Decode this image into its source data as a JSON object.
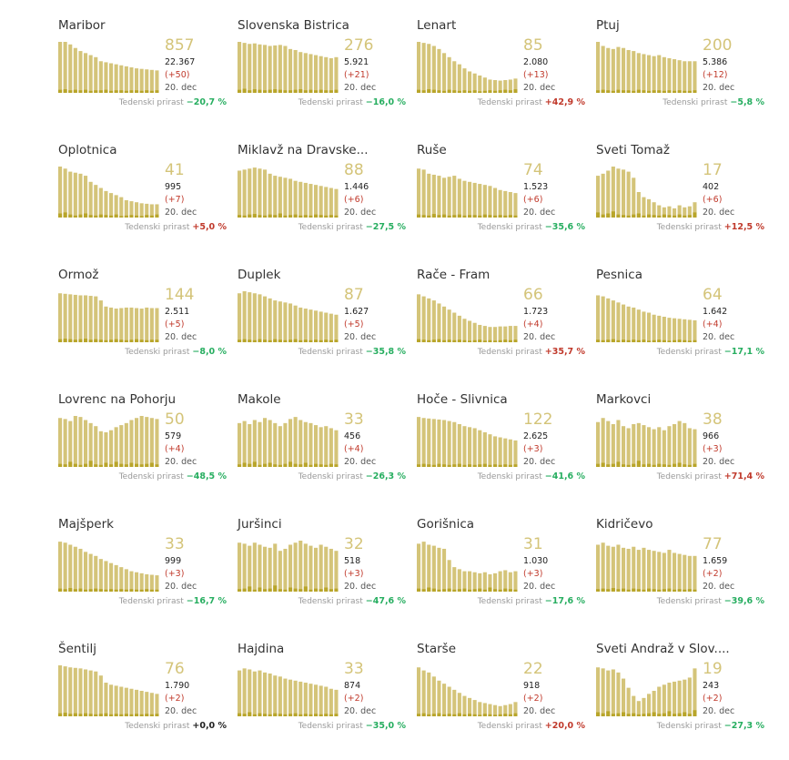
{
  "growth_label": "Tedenski prirast",
  "colors": {
    "bar": "#d4c479",
    "bar_light": "#e4d9a3",
    "bar_dark": "#b8a52a",
    "positive": "#c0392b",
    "negative": "#27ae60",
    "neutral": "#222222"
  },
  "chart_data": [
    {
      "type": "bar",
      "title": "Maribor",
      "big": "857",
      "cases": "22.367",
      "delta": "(+50)",
      "date": "20. dec",
      "growth": "−20,7 %",
      "sign": "neg",
      "values": [
        1.0,
        1.0,
        0.95,
        0.88,
        0.82,
        0.78,
        0.74,
        0.7,
        0.62,
        0.6,
        0.58,
        0.56,
        0.54,
        0.52,
        0.5,
        0.48,
        0.47,
        0.46,
        0.45,
        0.44
      ],
      "daily": [
        0.06,
        0.07,
        0.05,
        0.06,
        0.05,
        0.06,
        0.04,
        0.05,
        0.05,
        0.06,
        0.04,
        0.05,
        0.05,
        0.04,
        0.05,
        0.05,
        0.04,
        0.05,
        0.04,
        0.05
      ]
    },
    {
      "type": "bar",
      "title": "Slovenska Bistrica",
      "big": "276",
      "cases": "5.921",
      "delta": "(+21)",
      "date": "20. dec",
      "growth": "−16,0 %",
      "sign": "neg",
      "values": [
        1.0,
        0.98,
        0.96,
        0.97,
        0.95,
        0.94,
        0.92,
        0.93,
        0.94,
        0.92,
        0.86,
        0.84,
        0.8,
        0.78,
        0.76,
        0.74,
        0.72,
        0.7,
        0.68,
        0.7
      ],
      "daily": [
        0.06,
        0.08,
        0.05,
        0.07,
        0.06,
        0.05,
        0.06,
        0.07,
        0.06,
        0.05,
        0.05,
        0.06,
        0.07,
        0.05,
        0.06,
        0.05,
        0.06,
        0.05,
        0.05,
        0.06
      ]
    },
    {
      "type": "bar",
      "title": "Lenart",
      "big": "85",
      "cases": "2.080",
      "delta": "(+13)",
      "date": "20. dec",
      "growth": "+42,9 %",
      "sign": "pos",
      "values": [
        1.0,
        0.98,
        0.96,
        0.92,
        0.86,
        0.78,
        0.7,
        0.62,
        0.56,
        0.48,
        0.42,
        0.38,
        0.34,
        0.3,
        0.26,
        0.25,
        0.24,
        0.25,
        0.26,
        0.28
      ],
      "daily": [
        0.06,
        0.05,
        0.07,
        0.06,
        0.05,
        0.04,
        0.06,
        0.05,
        0.04,
        0.05,
        0.04,
        0.05,
        0.03,
        0.04,
        0.05,
        0.04,
        0.05,
        0.06,
        0.05,
        0.07
      ]
    },
    {
      "type": "bar",
      "title": "Ptuj",
      "big": "200",
      "cases": "5.386",
      "delta": "(+12)",
      "date": "20. dec",
      "growth": "−5,8 %",
      "sign": "neg",
      "values": [
        1.0,
        0.92,
        0.88,
        0.86,
        0.9,
        0.88,
        0.84,
        0.82,
        0.78,
        0.76,
        0.74,
        0.72,
        0.74,
        0.7,
        0.68,
        0.66,
        0.64,
        0.62,
        0.62,
        0.62
      ],
      "daily": [
        0.05,
        0.06,
        0.05,
        0.04,
        0.06,
        0.05,
        0.05,
        0.04,
        0.06,
        0.05,
        0.04,
        0.05,
        0.05,
        0.04,
        0.05,
        0.04,
        0.05,
        0.04,
        0.04,
        0.05
      ]
    },
    {
      "type": "bar",
      "title": "Oplotnica",
      "big": "41",
      "cases": "995",
      "delta": "(+7)",
      "date": "20. dec",
      "growth": "+5,0 %",
      "sign": "pos",
      "values": [
        1.0,
        0.96,
        0.9,
        0.88,
        0.86,
        0.82,
        0.7,
        0.64,
        0.58,
        0.52,
        0.48,
        0.44,
        0.4,
        0.34,
        0.32,
        0.3,
        0.28,
        0.27,
        0.26,
        0.26
      ],
      "daily": [
        0.08,
        0.1,
        0.06,
        0.04,
        0.06,
        0.08,
        0.05,
        0.04,
        0.06,
        0.05,
        0.04,
        0.06,
        0.03,
        0.04,
        0.05,
        0.04,
        0.03,
        0.05,
        0.04,
        0.06
      ]
    },
    {
      "type": "bar",
      "title": "Miklavž na Dravske...",
      "big": "88",
      "cases": "1.446",
      "delta": "(+6)",
      "date": "20. dec",
      "growth": "−27,5 %",
      "sign": "neg",
      "values": [
        0.92,
        0.94,
        0.96,
        0.98,
        0.96,
        0.94,
        0.86,
        0.82,
        0.8,
        0.78,
        0.76,
        0.72,
        0.7,
        0.68,
        0.66,
        0.64,
        0.62,
        0.6,
        0.58,
        0.56
      ],
      "daily": [
        0.05,
        0.04,
        0.06,
        0.07,
        0.05,
        0.04,
        0.06,
        0.05,
        0.08,
        0.04,
        0.05,
        0.06,
        0.04,
        0.05,
        0.04,
        0.06,
        0.05,
        0.04,
        0.05,
        0.04
      ]
    },
    {
      "type": "bar",
      "title": "Ruše",
      "big": "74",
      "cases": "1.523",
      "delta": "(+6)",
      "date": "20. dec",
      "growth": "−35,6 %",
      "sign": "neg",
      "values": [
        0.96,
        0.94,
        0.86,
        0.84,
        0.82,
        0.78,
        0.8,
        0.82,
        0.76,
        0.72,
        0.7,
        0.68,
        0.66,
        0.64,
        0.62,
        0.58,
        0.54,
        0.52,
        0.5,
        0.48
      ],
      "daily": [
        0.06,
        0.05,
        0.04,
        0.07,
        0.05,
        0.06,
        0.04,
        0.05,
        0.06,
        0.04,
        0.05,
        0.05,
        0.04,
        0.06,
        0.05,
        0.04,
        0.05,
        0.04,
        0.05,
        0.04
      ]
    },
    {
      "type": "bar",
      "title": "Sveti Tomaž",
      "big": "17",
      "cases": "402",
      "delta": "(+6)",
      "date": "20. dec",
      "growth": "+12,5 %",
      "sign": "pos",
      "values": [
        0.82,
        0.86,
        0.92,
        1.0,
        0.96,
        0.94,
        0.9,
        0.78,
        0.5,
        0.4,
        0.36,
        0.3,
        0.24,
        0.2,
        0.22,
        0.18,
        0.24,
        0.2,
        0.22,
        0.3
      ],
      "daily": [
        0.1,
        0.06,
        0.08,
        0.12,
        0.06,
        0.05,
        0.04,
        0.06,
        0.08,
        0.04,
        0.06,
        0.05,
        0.04,
        0.06,
        0.05,
        0.04,
        0.06,
        0.04,
        0.05,
        0.1
      ]
    },
    {
      "type": "bar",
      "title": "Ormož",
      "big": "144",
      "cases": "2.511",
      "delta": "(+5)",
      "date": "20. dec",
      "growth": "−8,0 %",
      "sign": "neg",
      "values": [
        0.96,
        0.95,
        0.94,
        0.93,
        0.92,
        0.92,
        0.91,
        0.9,
        0.82,
        0.7,
        0.68,
        0.66,
        0.67,
        0.68,
        0.68,
        0.67,
        0.66,
        0.68,
        0.67,
        0.67
      ],
      "daily": [
        0.06,
        0.07,
        0.06,
        0.05,
        0.06,
        0.07,
        0.05,
        0.06,
        0.05,
        0.04,
        0.05,
        0.06,
        0.05,
        0.04,
        0.05,
        0.06,
        0.05,
        0.04,
        0.05,
        0.05
      ]
    },
    {
      "type": "bar",
      "title": "Duplek",
      "big": "87",
      "cases": "1.627",
      "delta": "(+5)",
      "date": "20. dec",
      "growth": "−35,8 %",
      "sign": "neg",
      "values": [
        0.96,
        1.0,
        0.98,
        0.96,
        0.94,
        0.9,
        0.86,
        0.82,
        0.8,
        0.78,
        0.76,
        0.72,
        0.68,
        0.66,
        0.64,
        0.62,
        0.6,
        0.58,
        0.56,
        0.54
      ],
      "daily": [
        0.05,
        0.06,
        0.05,
        0.04,
        0.06,
        0.05,
        0.04,
        0.06,
        0.05,
        0.04,
        0.05,
        0.06,
        0.04,
        0.05,
        0.04,
        0.05,
        0.04,
        0.05,
        0.04,
        0.05
      ]
    },
    {
      "type": "bar",
      "title": "Rače - Fram",
      "big": "66",
      "cases": "1.723",
      "delta": "(+4)",
      "date": "20. dec",
      "growth": "+35,7 %",
      "sign": "pos",
      "values": [
        0.94,
        0.9,
        0.86,
        0.82,
        0.76,
        0.7,
        0.64,
        0.58,
        0.52,
        0.46,
        0.42,
        0.38,
        0.34,
        0.32,
        0.3,
        0.3,
        0.31,
        0.31,
        0.32,
        0.32
      ],
      "daily": [
        0.06,
        0.05,
        0.04,
        0.05,
        0.06,
        0.04,
        0.05,
        0.04,
        0.05,
        0.04,
        0.03,
        0.04,
        0.05,
        0.03,
        0.04,
        0.03,
        0.04,
        0.05,
        0.04,
        0.05
      ]
    },
    {
      "type": "bar",
      "title": "Pesnica",
      "big": "64",
      "cases": "1.642",
      "delta": "(+4)",
      "date": "20. dec",
      "growth": "−17,1 %",
      "sign": "neg",
      "values": [
        0.92,
        0.9,
        0.86,
        0.82,
        0.78,
        0.74,
        0.7,
        0.68,
        0.64,
        0.6,
        0.58,
        0.54,
        0.52,
        0.5,
        0.48,
        0.47,
        0.46,
        0.45,
        0.44,
        0.43
      ],
      "daily": [
        0.05,
        0.04,
        0.05,
        0.06,
        0.04,
        0.05,
        0.04,
        0.05,
        0.04,
        0.05,
        0.03,
        0.04,
        0.05,
        0.04,
        0.03,
        0.04,
        0.05,
        0.04,
        0.03,
        0.04
      ]
    },
    {
      "type": "bar",
      "title": "Lovrenc na Pohorju",
      "big": "50",
      "cases": "579",
      "delta": "(+4)",
      "date": "20. dec",
      "growth": "−48,5 %",
      "sign": "neg",
      "values": [
        0.96,
        0.94,
        0.9,
        1.0,
        0.98,
        0.92,
        0.86,
        0.8,
        0.7,
        0.68,
        0.72,
        0.78,
        0.82,
        0.86,
        0.92,
        0.96,
        1.0,
        0.98,
        0.96,
        0.94
      ],
      "daily": [
        0.06,
        0.05,
        0.1,
        0.06,
        0.04,
        0.06,
        0.12,
        0.05,
        0.04,
        0.08,
        0.05,
        0.1,
        0.06,
        0.05,
        0.08,
        0.06,
        0.05,
        0.06,
        0.08,
        0.05
      ]
    },
    {
      "type": "bar",
      "title": "Makole",
      "big": "33",
      "cases": "456",
      "delta": "(+4)",
      "date": "20. dec",
      "growth": "−26,3 %",
      "sign": "neg",
      "values": [
        0.86,
        0.9,
        0.84,
        0.92,
        0.88,
        0.96,
        0.92,
        0.86,
        0.8,
        0.86,
        0.94,
        0.98,
        0.92,
        0.88,
        0.86,
        0.82,
        0.78,
        0.8,
        0.76,
        0.72
      ],
      "daily": [
        0.05,
        0.08,
        0.06,
        0.1,
        0.04,
        0.06,
        0.08,
        0.05,
        0.04,
        0.06,
        0.1,
        0.06,
        0.05,
        0.08,
        0.04,
        0.06,
        0.05,
        0.04,
        0.06,
        0.05
      ]
    },
    {
      "type": "bar",
      "title": "Hoče - Slivnica",
      "big": "122",
      "cases": "2.625",
      "delta": "(+3)",
      "date": "20. dec",
      "growth": "−41,6 %",
      "sign": "neg",
      "values": [
        0.98,
        0.96,
        0.95,
        0.94,
        0.93,
        0.92,
        0.9,
        0.88,
        0.84,
        0.8,
        0.78,
        0.76,
        0.72,
        0.68,
        0.64,
        0.6,
        0.58,
        0.56,
        0.54,
        0.52
      ],
      "daily": [
        0.05,
        0.06,
        0.05,
        0.04,
        0.06,
        0.05,
        0.04,
        0.05,
        0.06,
        0.04,
        0.05,
        0.04,
        0.05,
        0.06,
        0.04,
        0.05,
        0.04,
        0.05,
        0.04,
        0.05
      ]
    },
    {
      "type": "bar",
      "title": "Markovci",
      "big": "38",
      "cases": "966",
      "delta": "(+3)",
      "date": "20. dec",
      "growth": "+71,4 %",
      "sign": "pos",
      "values": [
        0.88,
        0.96,
        0.9,
        0.84,
        0.92,
        0.8,
        0.76,
        0.84,
        0.86,
        0.82,
        0.78,
        0.74,
        0.78,
        0.72,
        0.8,
        0.84,
        0.9,
        0.86,
        0.76,
        0.74
      ],
      "daily": [
        0.06,
        0.08,
        0.05,
        0.06,
        0.1,
        0.05,
        0.04,
        0.06,
        0.12,
        0.05,
        0.06,
        0.04,
        0.06,
        0.05,
        0.04,
        0.06,
        0.08,
        0.05,
        0.04,
        0.06
      ]
    },
    {
      "type": "bar",
      "title": "Majšperk",
      "big": "33",
      "cases": "999",
      "delta": "(+3)",
      "date": "20. dec",
      "growth": "−16,7 %",
      "sign": "neg",
      "values": [
        0.98,
        0.96,
        0.92,
        0.88,
        0.84,
        0.78,
        0.74,
        0.7,
        0.64,
        0.6,
        0.56,
        0.52,
        0.48,
        0.44,
        0.4,
        0.38,
        0.36,
        0.34,
        0.33,
        0.32
      ],
      "daily": [
        0.06,
        0.05,
        0.07,
        0.05,
        0.06,
        0.04,
        0.05,
        0.06,
        0.05,
        0.04,
        0.05,
        0.04,
        0.05,
        0.04,
        0.05,
        0.04,
        0.04,
        0.05,
        0.04,
        0.04
      ]
    },
    {
      "type": "bar",
      "title": "Juršinci",
      "big": "32",
      "cases": "518",
      "delta": "(+3)",
      "date": "20. dec",
      "growth": "−47,6 %",
      "sign": "neg",
      "values": [
        0.96,
        0.94,
        0.9,
        0.96,
        0.92,
        0.88,
        0.86,
        0.94,
        0.8,
        0.84,
        0.92,
        0.96,
        1.0,
        0.94,
        0.9,
        0.86,
        0.92,
        0.88,
        0.84,
        0.8
      ],
      "daily": [
        0.05,
        0.06,
        0.1,
        0.04,
        0.08,
        0.05,
        0.06,
        0.12,
        0.05,
        0.04,
        0.08,
        0.06,
        0.05,
        0.1,
        0.04,
        0.06,
        0.05,
        0.08,
        0.05,
        0.06
      ]
    },
    {
      "type": "bar",
      "title": "Gorišnica",
      "big": "31",
      "cases": "1.030",
      "delta": "(+3)",
      "date": "20. dec",
      "growth": "−17,6 %",
      "sign": "neg",
      "values": [
        0.94,
        0.98,
        0.92,
        0.9,
        0.86,
        0.84,
        0.62,
        0.48,
        0.44,
        0.4,
        0.4,
        0.38,
        0.36,
        0.38,
        0.34,
        0.36,
        0.4,
        0.42,
        0.38,
        0.4
      ],
      "daily": [
        0.06,
        0.05,
        0.08,
        0.06,
        0.04,
        0.05,
        0.06,
        0.04,
        0.05,
        0.06,
        0.04,
        0.05,
        0.06,
        0.04,
        0.08,
        0.05,
        0.04,
        0.06,
        0.05,
        0.04
      ]
    },
    {
      "type": "bar",
      "title": "Kidričevo",
      "big": "77",
      "cases": "1.659",
      "delta": "(+2)",
      "date": "20. dec",
      "growth": "−39,6 %",
      "sign": "neg",
      "values": [
        0.92,
        0.96,
        0.9,
        0.88,
        0.92,
        0.86,
        0.84,
        0.88,
        0.82,
        0.86,
        0.82,
        0.8,
        0.78,
        0.76,
        0.82,
        0.76,
        0.74,
        0.72,
        0.7,
        0.7
      ],
      "daily": [
        0.05,
        0.06,
        0.05,
        0.07,
        0.05,
        0.06,
        0.04,
        0.06,
        0.05,
        0.04,
        0.06,
        0.05,
        0.04,
        0.05,
        0.06,
        0.04,
        0.05,
        0.04,
        0.05,
        0.04
      ]
    },
    {
      "type": "bar",
      "title": "Šentilj",
      "big": "76",
      "cases": "1.790",
      "delta": "(+2)",
      "date": "20. dec",
      "growth": "+0,0 %",
      "sign": "zero",
      "values": [
        1.0,
        0.98,
        0.96,
        0.95,
        0.94,
        0.92,
        0.9,
        0.88,
        0.8,
        0.66,
        0.62,
        0.6,
        0.58,
        0.56,
        0.54,
        0.52,
        0.5,
        0.48,
        0.46,
        0.44
      ],
      "daily": [
        0.06,
        0.07,
        0.05,
        0.06,
        0.05,
        0.06,
        0.05,
        0.04,
        0.05,
        0.06,
        0.04,
        0.05,
        0.04,
        0.05,
        0.04,
        0.05,
        0.04,
        0.05,
        0.04,
        0.05
      ]
    },
    {
      "type": "bar",
      "title": "Hajdina",
      "big": "33",
      "cases": "874",
      "delta": "(+2)",
      "date": "20. dec",
      "growth": "−35,0 %",
      "sign": "neg",
      "values": [
        0.9,
        0.94,
        0.92,
        0.88,
        0.9,
        0.86,
        0.84,
        0.8,
        0.78,
        0.74,
        0.72,
        0.7,
        0.68,
        0.66,
        0.64,
        0.62,
        0.6,
        0.58,
        0.54,
        0.52
      ],
      "daily": [
        0.06,
        0.05,
        0.08,
        0.04,
        0.06,
        0.05,
        0.04,
        0.06,
        0.05,
        0.04,
        0.05,
        0.06,
        0.04,
        0.05,
        0.04,
        0.05,
        0.04,
        0.05,
        0.04,
        0.05
      ]
    },
    {
      "type": "bar",
      "title": "Starše",
      "big": "22",
      "cases": "918",
      "delta": "(+2)",
      "date": "20. dec",
      "growth": "+20,0 %",
      "sign": "pos",
      "values": [
        0.96,
        0.9,
        0.86,
        0.78,
        0.7,
        0.64,
        0.58,
        0.52,
        0.46,
        0.4,
        0.36,
        0.32,
        0.28,
        0.26,
        0.24,
        0.22,
        0.2,
        0.22,
        0.24,
        0.28
      ],
      "daily": [
        0.05,
        0.06,
        0.04,
        0.05,
        0.06,
        0.04,
        0.05,
        0.04,
        0.06,
        0.04,
        0.05,
        0.04,
        0.03,
        0.05,
        0.04,
        0.03,
        0.04,
        0.05,
        0.04,
        0.06
      ]
    },
    {
      "type": "bar",
      "title": "Sveti Andraž v Slov....",
      "big": "19",
      "cases": "243",
      "delta": "(+2)",
      "date": "20. dec",
      "growth": "−27,3 %",
      "sign": "neg",
      "values": [
        0.96,
        0.94,
        0.9,
        0.92,
        0.86,
        0.74,
        0.56,
        0.4,
        0.3,
        0.36,
        0.44,
        0.5,
        0.58,
        0.62,
        0.66,
        0.68,
        0.7,
        0.72,
        0.76,
        0.94
      ],
      "daily": [
        0.08,
        0.06,
        0.1,
        0.05,
        0.06,
        0.08,
        0.05,
        0.06,
        0.04,
        0.05,
        0.06,
        0.08,
        0.05,
        0.06,
        0.1,
        0.05,
        0.06,
        0.08,
        0.05,
        0.12
      ]
    }
  ]
}
